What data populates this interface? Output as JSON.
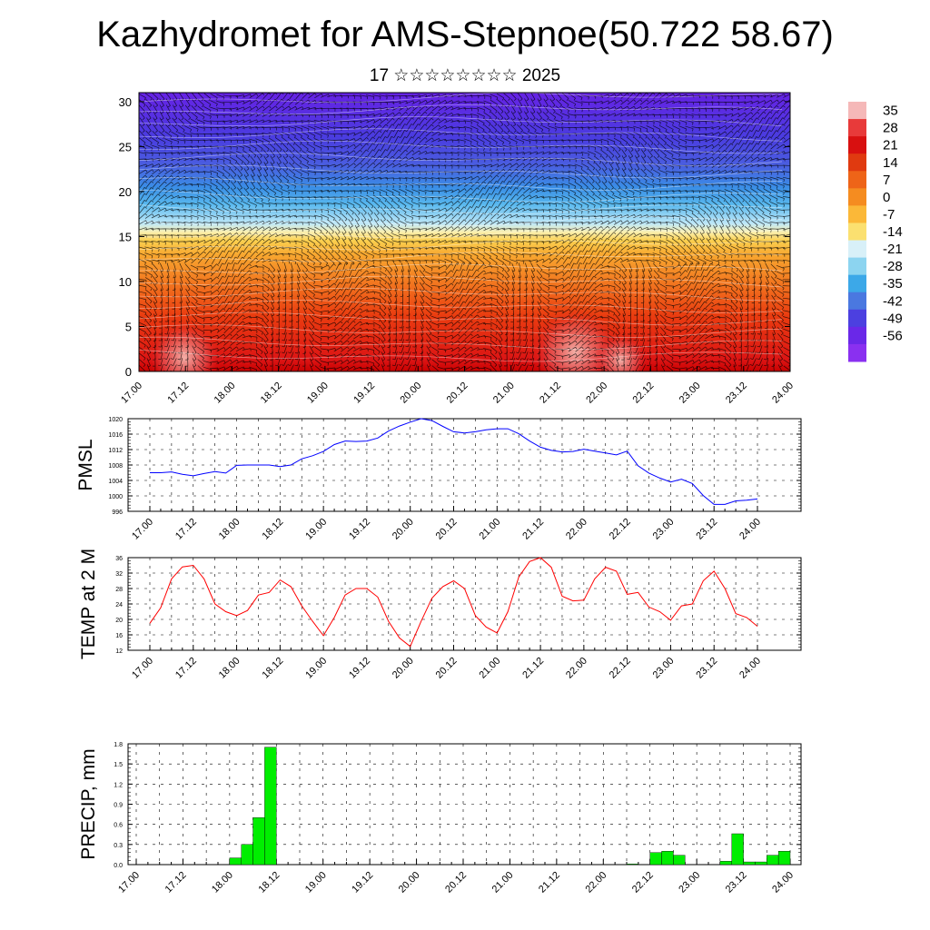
{
  "header": {
    "title": "Kazhydromet for AMS-Stepnoe(50.722 58.67)",
    "subtitle": "17 ☆☆☆☆☆☆☆☆ 2025"
  },
  "colors": {
    "pmsl_line": "#0000ff",
    "temp_line": "#ff0000",
    "precip_bar": "#00ee00"
  },
  "chart_data": [
    {
      "type": "heatmap",
      "title": "",
      "xlabel": "",
      "ylabel": "",
      "x_ticks": [
        "17.00",
        "17.12",
        "18.00",
        "18.12",
        "19.00",
        "19.12",
        "20.00",
        "20.12",
        "21.00",
        "21.12",
        "22.00",
        "22.12",
        "23.00",
        "23.12",
        "24.00"
      ],
      "y_ticks": [
        0,
        5,
        10,
        15,
        20,
        25,
        30
      ],
      "ylim": [
        0,
        31
      ],
      "note_overlay": "wind barbs",
      "colorbar": {
        "labels": [
          35,
          28,
          21,
          14,
          7,
          0,
          -7,
          -14,
          -21,
          -28,
          -35,
          -42,
          -49,
          -56
        ],
        "colors": [
          "#f5b8b8",
          "#e83a3a",
          "#d81010",
          "#e03a10",
          "#ee6418",
          "#f58c20",
          "#fbb838",
          "#fbe070",
          "#d8f0f8",
          "#8cd4f0",
          "#3ca8e8",
          "#4a78e0",
          "#4c40e0",
          "#6a28e8",
          "#8a30f0"
        ]
      }
    },
    {
      "type": "line",
      "ylabel": "PMSL",
      "ylim": [
        996,
        1020
      ],
      "y_ticks": [
        996,
        1000,
        1004,
        1008,
        1012,
        1016,
        1020
      ],
      "x_ticks": [
        "17.00",
        "17.12",
        "18.00",
        "18.12",
        "19.00",
        "19.12",
        "20.00",
        "20.12",
        "21.00",
        "21.12",
        "22.00",
        "22.12",
        "23.00",
        "23.12",
        "24.00"
      ],
      "x_step_hours": 3,
      "series": [
        {
          "values": [
            1006,
            1006,
            1006.2,
            1005.6,
            1005.2,
            1005.8,
            1006.3,
            1005.9,
            1007.9,
            1008,
            1008,
            1008,
            1007.6,
            1008,
            1009.6,
            1010.4,
            1011.5,
            1013.3,
            1014.2,
            1014.1,
            1014.2,
            1015,
            1016.8,
            1018.1,
            1019.1,
            1020,
            1019.5,
            1018,
            1016.6,
            1016.3,
            1016.6,
            1017.1,
            1017.4,
            1017.4,
            1016.1,
            1014.2,
            1012.6,
            1011.8,
            1011.4,
            1011.5,
            1012.1,
            1011.6,
            1011.1,
            1010.6,
            1011.6,
            1007.8,
            1005.9,
            1004.6,
            1003.6,
            1004.3,
            1003.2,
            1000.1,
            997.8,
            997.8,
            998.7,
            998.9,
            999.2
          ]
        }
      ]
    },
    {
      "type": "line",
      "ylabel": "TEMP at 2 M",
      "ylim": [
        12,
        36
      ],
      "y_ticks": [
        12,
        16,
        20,
        24,
        28,
        32,
        36
      ],
      "x_ticks": [
        "17.00",
        "17.12",
        "18.00",
        "18.12",
        "19.00",
        "19.12",
        "20.00",
        "20.12",
        "21.00",
        "21.12",
        "22.00",
        "22.12",
        "23.00",
        "23.12",
        "24.00"
      ],
      "x_step_hours": 3,
      "series": [
        {
          "values": [
            19,
            23,
            30.5,
            33.6,
            34,
            30.5,
            24,
            22,
            21,
            22.3,
            26.3,
            27,
            30.2,
            28.5,
            23.5,
            19.5,
            15.8,
            20.5,
            26.3,
            28,
            28,
            25.8,
            19.5,
            15.2,
            13,
            19.5,
            25.5,
            28.5,
            30,
            28,
            21,
            18,
            16.5,
            22,
            31,
            35,
            36,
            33.5,
            26,
            24.8,
            25,
            30.5,
            33.5,
            32.5,
            26.5,
            27,
            23.2,
            22,
            19.8,
            23.5,
            24,
            30,
            32.5,
            28,
            21.5,
            20.5,
            18.2
          ]
        }
      ]
    },
    {
      "type": "bar",
      "ylabel": "PRECIP, mm",
      "ylim": [
        0,
        1.8
      ],
      "y_ticks": [
        "0.0",
        "0.3",
        "0.6",
        "0.9",
        "1.2",
        "1.5",
        "1.8"
      ],
      "x_ticks": [
        "17.00",
        "17.12",
        "18.00",
        "18.12",
        "19.00",
        "19.12",
        "20.00",
        "20.12",
        "21.00",
        "21.12",
        "22.00",
        "22.12",
        "23.00",
        "23.12",
        "24.00"
      ],
      "x_step_hours": 3,
      "values": [
        0,
        0,
        0,
        0,
        0,
        0,
        0,
        0,
        0.1,
        0.3,
        0.7,
        1.75,
        0,
        0,
        0,
        0,
        0,
        0,
        0,
        0,
        0,
        0,
        0,
        0,
        0,
        0,
        0,
        0,
        0,
        0,
        0,
        0,
        0,
        0,
        0,
        0,
        0,
        0,
        0,
        0,
        0,
        0,
        0.01,
        0,
        0.18,
        0.2,
        0.14,
        0,
        0,
        0,
        0.05,
        0.46,
        0.04,
        0.04,
        0.14,
        0.2,
        0
      ]
    }
  ]
}
